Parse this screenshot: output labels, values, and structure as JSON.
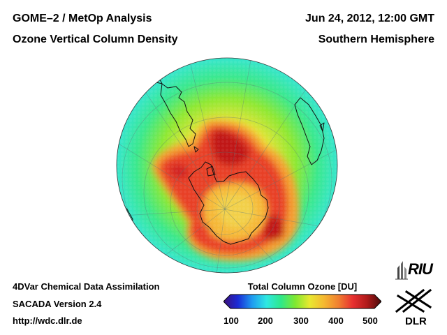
{
  "header": {
    "title_line1": "GOME–2 / MetOp Analysis",
    "title_line2": "Ozone Vertical Column Density",
    "date": "Jun 24, 2012, 12:00 GMT",
    "region": "Southern Hemisphere"
  },
  "footer": {
    "method": "4DVar Chemical Data Assimilation",
    "version": "SACADA Version 2.4",
    "url": "http://wdc.dlr.de"
  },
  "legend": {
    "title": "Total Column Ozone [DU]",
    "ticks": [
      "100",
      "200",
      "300",
      "400",
      "500"
    ],
    "colors": [
      "#3d0f7a",
      "#1a2bd6",
      "#1f9cf0",
      "#2ee8e2",
      "#2ee88a",
      "#7fe830",
      "#e8e830",
      "#f5b830",
      "#f08030",
      "#e83030",
      "#b01a1a",
      "#4a0a0a"
    ]
  },
  "logos": {
    "riu": "RIU",
    "dlr": "DLR"
  }
}
